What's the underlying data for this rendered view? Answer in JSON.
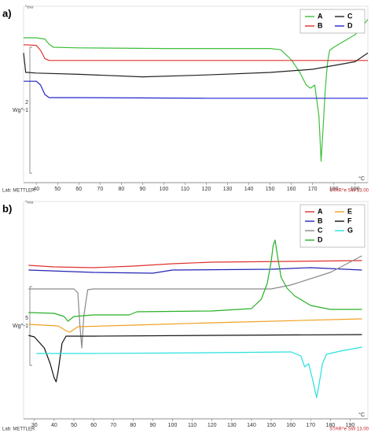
{
  "chart_data": [
    {
      "type": "line",
      "panel_label": "a)",
      "exo_label": "^exo",
      "xlim": [
        34,
        196
      ],
      "xticks": [
        40,
        50,
        60,
        70,
        80,
        90,
        100,
        110,
        120,
        130,
        140,
        150,
        160,
        170,
        180,
        190
      ],
      "xlabel": "°C",
      "ylim": [
        0,
        2.8
      ],
      "scalebar_value": 2,
      "scalebar_unit": "Wg^-1",
      "legend_position": "upper right",
      "lab": "Lab: METTLER",
      "software": "STAR^e SW 13.00",
      "series": [
        {
          "name": "A",
          "color": "#3cbf3c",
          "x": [
            34,
            40,
            44,
            46,
            48,
            60,
            100,
            150,
            155,
            160,
            164,
            167,
            169,
            171,
            173,
            174,
            175,
            176,
            177,
            178,
            180,
            190,
            196
          ],
          "values": [
            2.3,
            2.3,
            2.28,
            2.2,
            2.15,
            2.14,
            2.13,
            2.13,
            2.11,
            1.95,
            1.75,
            1.55,
            1.5,
            1.55,
            1.05,
            0.34,
            0.9,
            1.5,
            1.9,
            2.1,
            2.15,
            2.35,
            2.59
          ]
        },
        {
          "name": "B",
          "color": "#e03030",
          "x": [
            34,
            40,
            42,
            44,
            46,
            60,
            120,
            196
          ],
          "values": [
            2.19,
            2.18,
            2.1,
            1.97,
            1.94,
            1.94,
            1.94,
            1.94
          ]
        },
        {
          "name": "C",
          "color": "#222222",
          "x": [
            34,
            35,
            36,
            40,
            60,
            90,
            120,
            150,
            170,
            190,
            196
          ],
          "values": [
            2.06,
            1.75,
            1.75,
            1.74,
            1.72,
            1.68,
            1.71,
            1.75,
            1.8,
            1.92,
            2.06
          ]
        },
        {
          "name": "D",
          "color": "#2424cc",
          "x": [
            34,
            40,
            42,
            44,
            46,
            60,
            120,
            196
          ],
          "values": [
            1.61,
            1.61,
            1.55,
            1.4,
            1.35,
            1.35,
            1.34,
            1.34
          ]
        }
      ]
    },
    {
      "type": "line",
      "panel_label": "b)",
      "exo_label": "^exo",
      "xlim": [
        24.5,
        199
      ],
      "xticks": [
        30,
        40,
        50,
        60,
        70,
        80,
        90,
        100,
        110,
        120,
        130,
        140,
        150,
        160,
        170,
        180,
        190
      ],
      "xlabel": "°C",
      "ylim": [
        0,
        13.8
      ],
      "scalebar_value": 5,
      "scalebar_unit": "Wg^-1",
      "legend_position": "upper right",
      "lab": "Lab: METTLER",
      "software": "STAR^e SW 13.00",
      "series": [
        {
          "name": "A",
          "color": "#e03030",
          "x": [
            27,
            40,
            60,
            80,
            100,
            120,
            160,
            196
          ],
          "values": [
            9.75,
            9.65,
            9.6,
            9.7,
            9.85,
            9.95,
            10.0,
            10.05
          ]
        },
        {
          "name": "B",
          "color": "#2424b4",
          "x": [
            27,
            60,
            90,
            95,
            100,
            150,
            170,
            196
          ],
          "values": [
            9.45,
            9.3,
            9.25,
            9.35,
            9.45,
            9.5,
            9.6,
            9.45
          ]
        },
        {
          "name": "C",
          "color": "#8a8a8a",
          "x": [
            27,
            50,
            52,
            53,
            54,
            55,
            57,
            60,
            150,
            160,
            180,
            196
          ],
          "values": [
            8.25,
            8.25,
            8.0,
            6.0,
            4.5,
            6.5,
            8.2,
            8.25,
            8.25,
            8.5,
            9.3,
            10.35
          ]
        },
        {
          "name": "D",
          "color": "#28b028",
          "x": [
            27,
            40,
            45,
            47,
            50,
            60,
            78,
            82,
            120,
            140,
            145,
            148,
            150,
            151,
            152,
            153,
            155,
            158,
            162,
            170,
            180,
            196
          ],
          "values": [
            6.75,
            6.7,
            6.5,
            6.2,
            6.5,
            6.6,
            6.6,
            6.8,
            6.85,
            7.0,
            7.6,
            8.6,
            10.0,
            11.0,
            11.35,
            10.5,
            9.0,
            8.3,
            7.8,
            7.2,
            6.95,
            6.95
          ]
        },
        {
          "name": "E",
          "color": "#f0a020",
          "x": [
            27,
            42,
            46,
            48,
            52,
            80,
            120,
            196
          ],
          "values": [
            6.0,
            5.9,
            5.6,
            5.5,
            5.85,
            5.95,
            6.1,
            6.35
          ]
        },
        {
          "name": "F",
          "color": "#111111",
          "x": [
            27,
            30,
            35,
            38,
            40,
            41,
            42,
            44,
            46,
            60,
            120,
            196
          ],
          "values": [
            5.3,
            5.2,
            4.5,
            3.5,
            2.6,
            2.35,
            3.0,
            4.8,
            5.25,
            5.25,
            5.3,
            5.35
          ]
        },
        {
          "name": "G",
          "color": "#28e0e0",
          "x": [
            31,
            60,
            120,
            160,
            165,
            167,
            169,
            171,
            173,
            174,
            176,
            178,
            185,
            196
          ],
          "values": [
            4.15,
            4.15,
            4.2,
            4.25,
            4.0,
            3.3,
            3.5,
            2.5,
            1.35,
            2.0,
            3.5,
            4.1,
            4.3,
            4.55
          ]
        }
      ]
    }
  ]
}
